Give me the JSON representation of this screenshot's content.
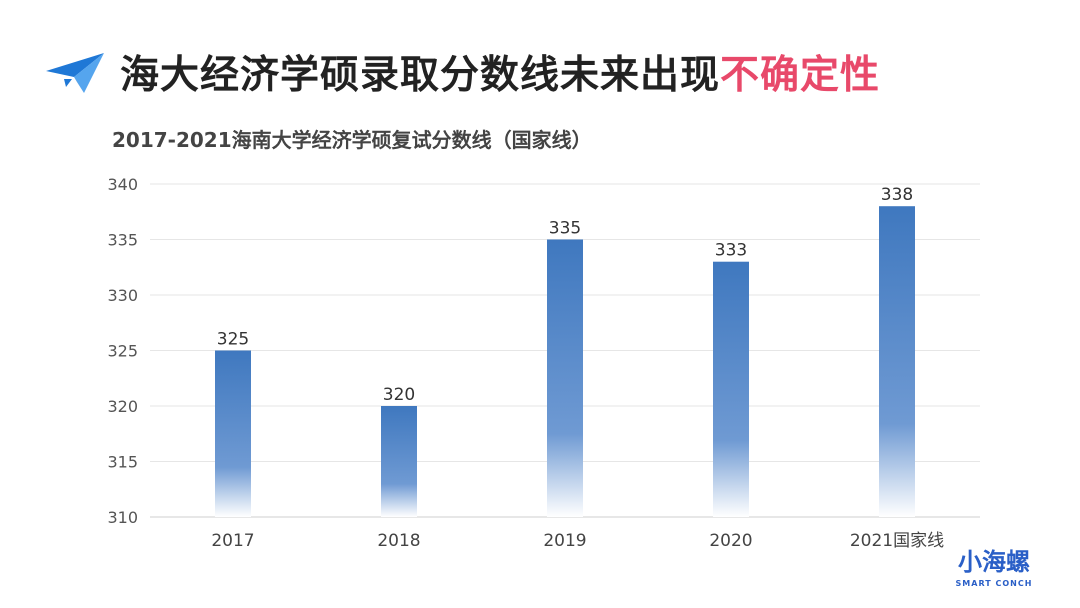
{
  "headline": {
    "main": "海大经济学硕录取分数线未来出现",
    "accent": "不确定性",
    "accent_color": "#e8496a"
  },
  "logo": {
    "main": "小海螺",
    "sub": "SMART CONCH"
  },
  "chart_data": {
    "type": "bar",
    "title": "2017-2021海南大学经济学硕复试分数线（国家线）",
    "categories": [
      "2017",
      "2018",
      "2019",
      "2020",
      "2021国家线"
    ],
    "values": [
      325,
      320,
      335,
      333,
      338
    ],
    "ylim": [
      310,
      340
    ],
    "yticks": [
      310,
      315,
      320,
      325,
      330,
      335,
      340
    ],
    "grid": true,
    "bar_color": "#3f78bf"
  }
}
